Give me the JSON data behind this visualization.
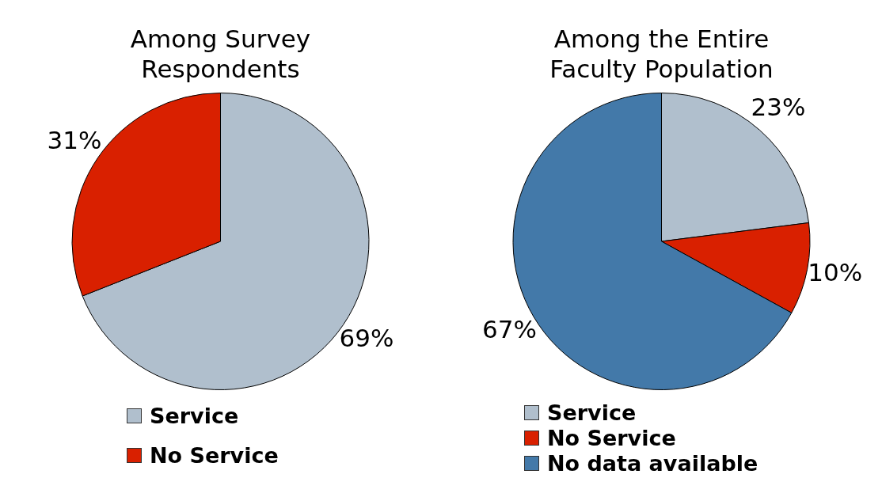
{
  "chart_data": [
    {
      "type": "pie",
      "title": "Among Survey Respondents",
      "categories": [
        "Service",
        "No Service"
      ],
      "values": [
        69,
        31
      ],
      "colors": [
        "#b0bfcd",
        "#d92000"
      ],
      "value_labels": [
        "69%",
        "31%"
      ],
      "legend": "bottom"
    },
    {
      "type": "pie",
      "title": "Among the Entire Faculty Population",
      "categories": [
        "Service",
        "No Service",
        "No data available"
      ],
      "values": [
        23,
        10,
        67
      ],
      "colors": [
        "#b0bfcd",
        "#d92000",
        "#4379a9"
      ],
      "value_labels": [
        "23%",
        "10%",
        "67%"
      ],
      "legend": "bottom"
    }
  ]
}
